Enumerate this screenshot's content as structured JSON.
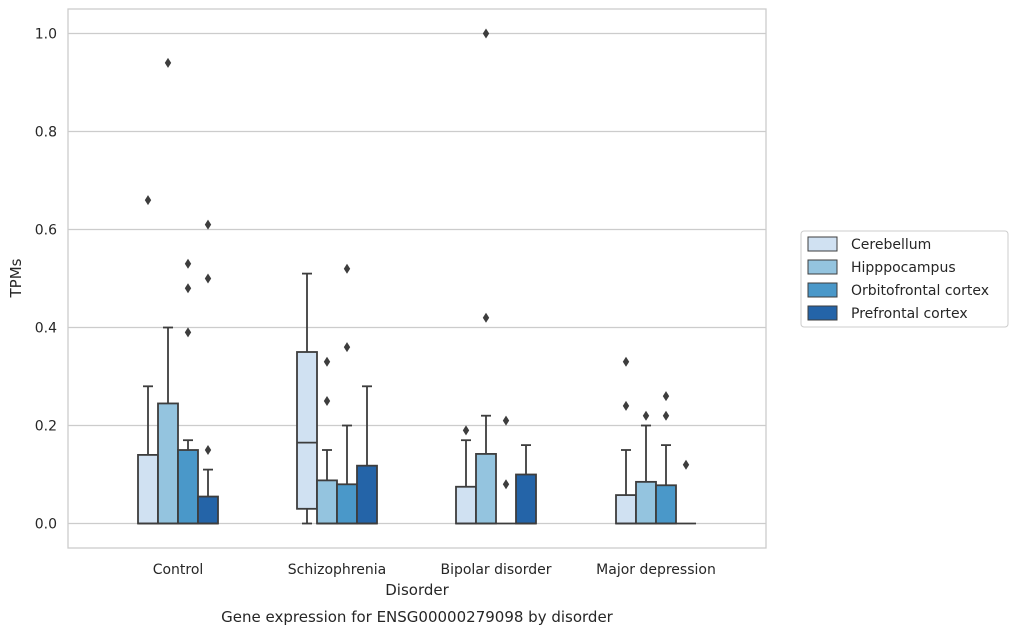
{
  "chart_data": {
    "type": "box",
    "title": "Gene expression for ENSG00000279098 by disorder",
    "xlabel": "Disorder",
    "ylabel": "TPMs",
    "ylim": [
      -0.05,
      1.05
    ],
    "yticks": [
      0.0,
      0.2,
      0.4,
      0.6,
      0.8,
      1.0
    ],
    "ytick_labels": [
      "0.0",
      "0.2",
      "0.4",
      "0.6",
      "0.8",
      "1.0"
    ],
    "grid": true,
    "legend_position": "right",
    "categories": [
      "Control",
      "Schizophrenia",
      "Bipolar disorder",
      "Major depression"
    ],
    "series": [
      {
        "name": "Cerebellum",
        "color": "#d0e1f2",
        "boxes": [
          {
            "q1": 0.0,
            "median": 0.0,
            "q3": 0.14,
            "whisker_low": 0.0,
            "whisker_high": 0.28,
            "outliers": [
              0.66
            ]
          },
          {
            "q1": 0.03,
            "median": 0.165,
            "q3": 0.35,
            "whisker_low": 0.0,
            "whisker_high": 0.51,
            "outliers": []
          },
          {
            "q1": 0.0,
            "median": 0.0,
            "q3": 0.075,
            "whisker_low": 0.0,
            "whisker_high": 0.17,
            "outliers": [
              0.19
            ]
          },
          {
            "q1": 0.0,
            "median": 0.0,
            "q3": 0.058,
            "whisker_low": 0.0,
            "whisker_high": 0.15,
            "outliers": [
              0.24,
              0.33
            ]
          }
        ]
      },
      {
        "name": "Hipppocampus",
        "color": "#94c4df",
        "boxes": [
          {
            "q1": 0.0,
            "median": 0.0,
            "q3": 0.245,
            "whisker_low": 0.0,
            "whisker_high": 0.4,
            "outliers": [
              0.94
            ]
          },
          {
            "q1": 0.0,
            "median": 0.0,
            "q3": 0.088,
            "whisker_low": 0.0,
            "whisker_high": 0.15,
            "outliers": [
              0.25,
              0.33
            ]
          },
          {
            "q1": 0.0,
            "median": 0.0,
            "q3": 0.142,
            "whisker_low": 0.0,
            "whisker_high": 0.22,
            "outliers": [
              0.42,
              1.0
            ]
          },
          {
            "q1": 0.0,
            "median": 0.0,
            "q3": 0.085,
            "whisker_low": 0.0,
            "whisker_high": 0.2,
            "outliers": [
              0.22
            ]
          }
        ]
      },
      {
        "name": "Orbitofrontal cortex",
        "color": "#4a98c9",
        "boxes": [
          {
            "q1": 0.0,
            "median": 0.0,
            "q3": 0.15,
            "whisker_low": 0.0,
            "whisker_high": 0.17,
            "outliers": [
              0.39,
              0.48,
              0.53
            ]
          },
          {
            "q1": 0.0,
            "median": 0.0,
            "q3": 0.08,
            "whisker_low": 0.0,
            "whisker_high": 0.2,
            "outliers": [
              0.36,
              0.52
            ]
          },
          {
            "q1": 0.0,
            "median": 0.0,
            "q3": 0.0,
            "whisker_low": 0.0,
            "whisker_high": 0.0,
            "outliers": [
              0.08,
              0.21
            ]
          },
          {
            "q1": 0.0,
            "median": 0.0,
            "q3": 0.078,
            "whisker_low": 0.0,
            "whisker_high": 0.16,
            "outliers": [
              0.22,
              0.26
            ]
          }
        ]
      },
      {
        "name": "Prefrontal cortex",
        "color": "#2464a8",
        "boxes": [
          {
            "q1": 0.0,
            "median": 0.0,
            "q3": 0.055,
            "whisker_low": 0.0,
            "whisker_high": 0.11,
            "outliers": [
              0.15,
              0.5,
              0.61
            ]
          },
          {
            "q1": 0.0,
            "median": 0.0,
            "q3": 0.118,
            "whisker_low": 0.0,
            "whisker_high": 0.28,
            "outliers": []
          },
          {
            "q1": 0.0,
            "median": 0.0,
            "q3": 0.1,
            "whisker_low": 0.0,
            "whisker_high": 0.16,
            "outliers": []
          },
          {
            "q1": 0.0,
            "median": 0.0,
            "q3": 0.0,
            "whisker_low": 0.0,
            "whisker_high": 0.0,
            "outliers": [
              0.12
            ]
          }
        ]
      }
    ]
  }
}
